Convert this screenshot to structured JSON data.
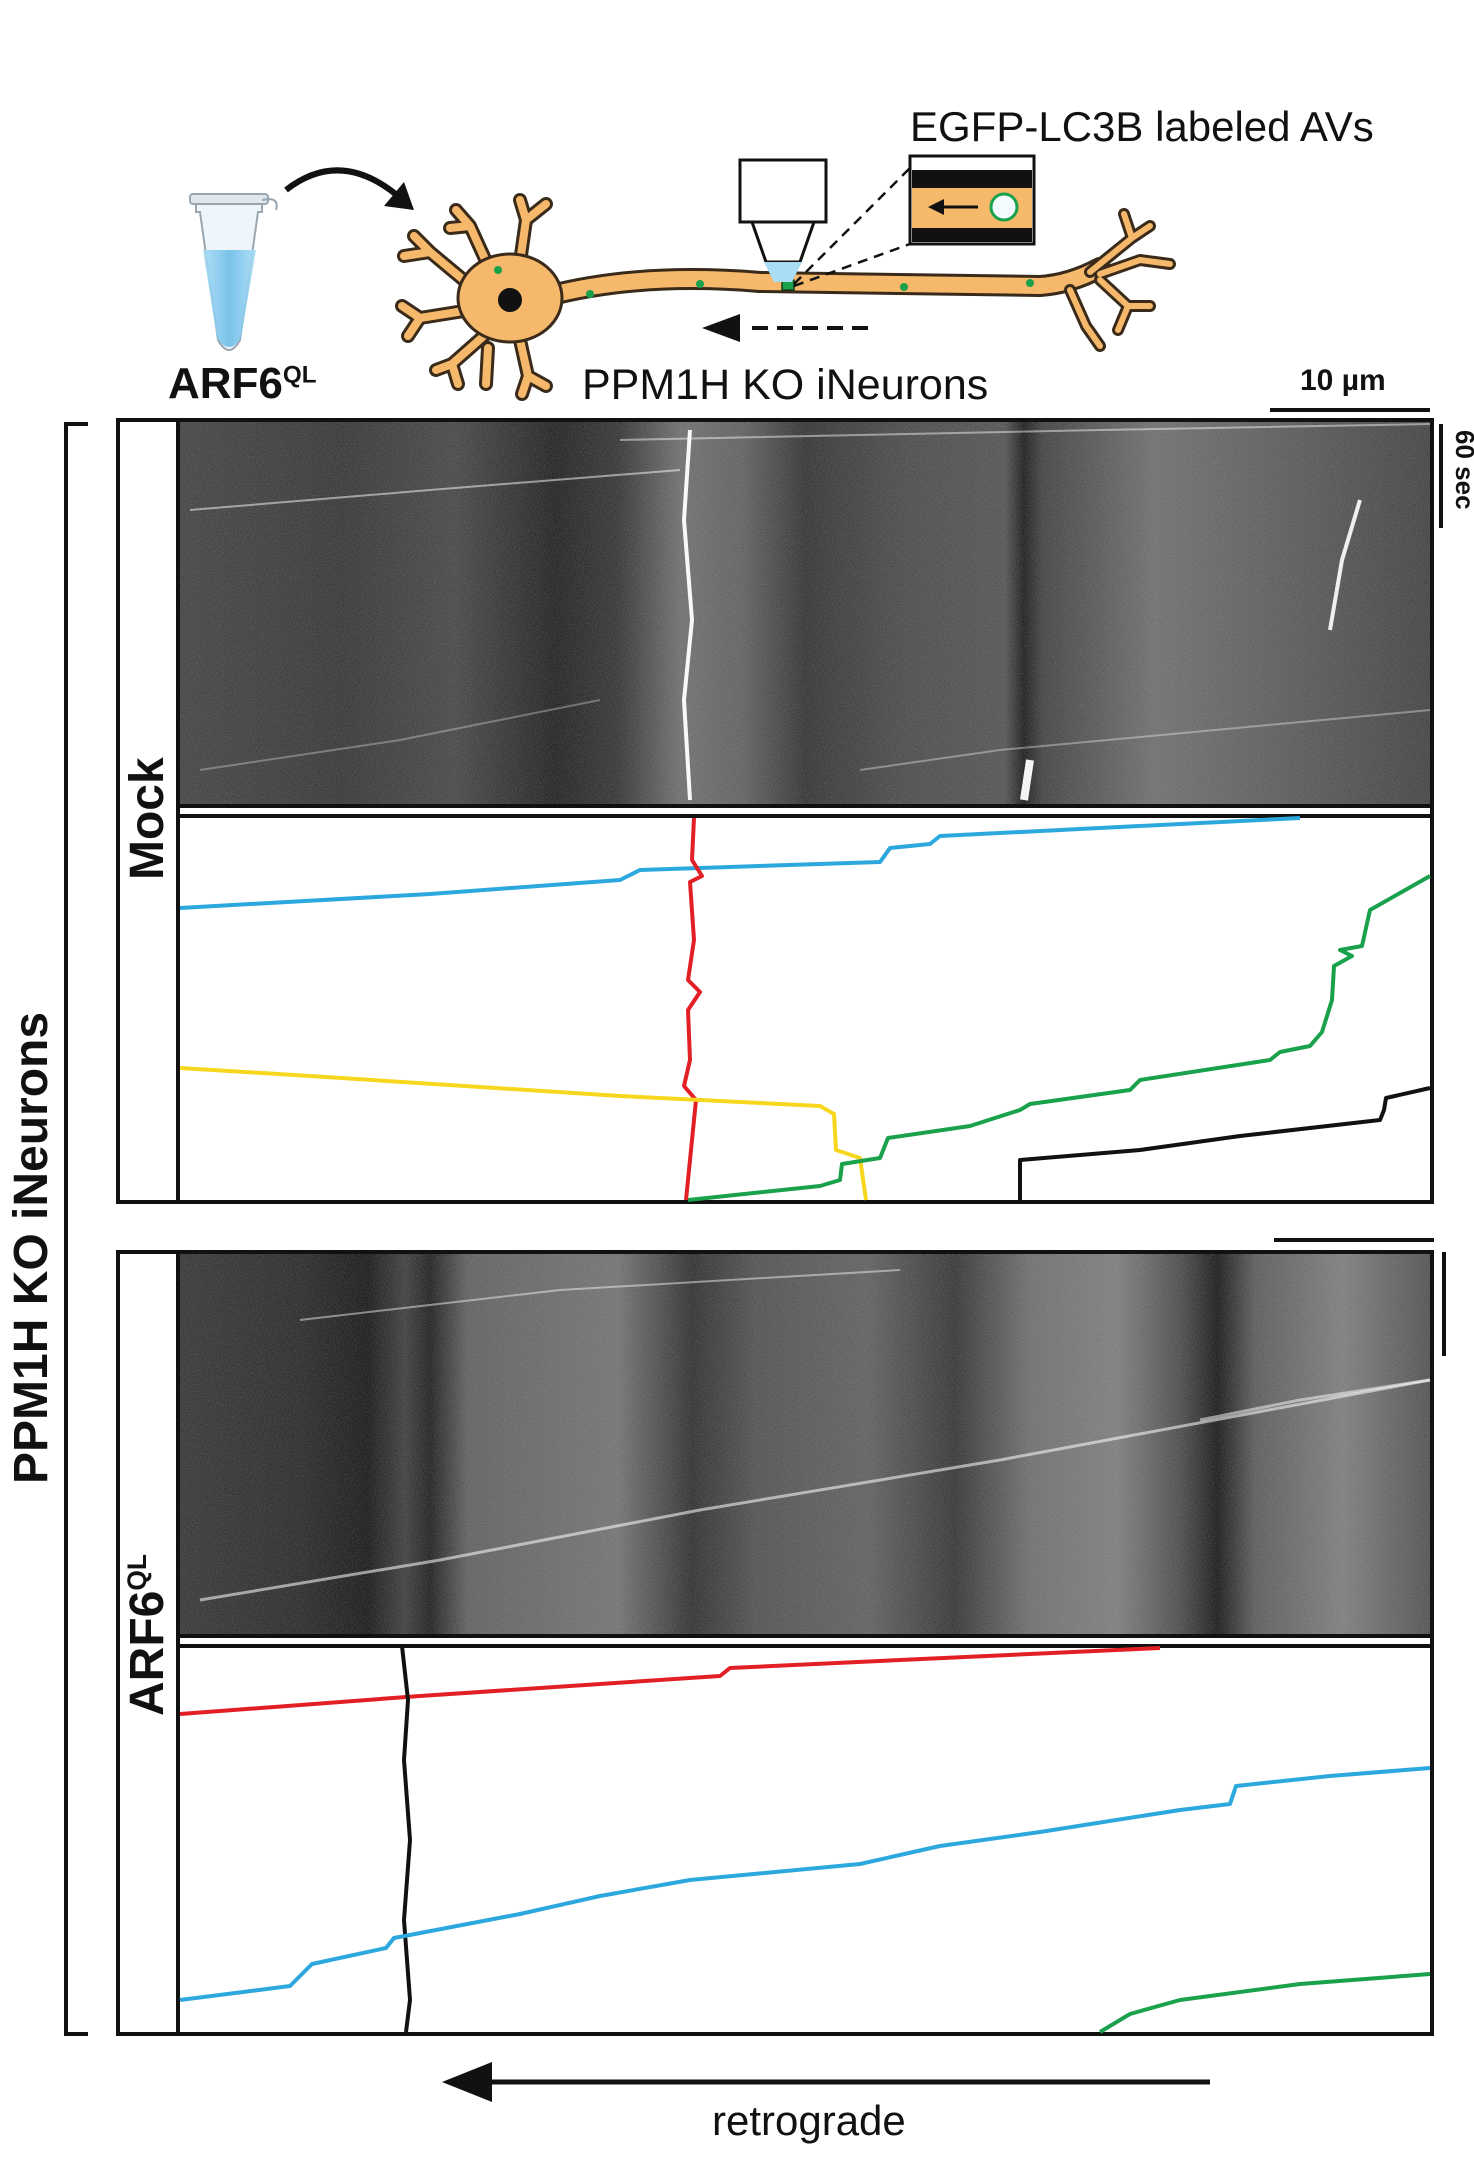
{
  "header": {
    "construct_label": "ARF6",
    "construct_sup": "QL",
    "neuron_label": "PPM1H KO iNeurons",
    "av_label": "EGFP-LC3B labeled AVs"
  },
  "scale_bars": {
    "distance": "10 µm",
    "time": "60 sec"
  },
  "side_label": "PPM1H KO iNeurons",
  "panels": [
    {
      "condition": "Mock",
      "condition_sup": "",
      "tracks": [
        {
          "color": "#2ca8de",
          "name": "blue-track"
        },
        {
          "color": "#e31f26",
          "name": "red-track"
        },
        {
          "color": "#f7d71e",
          "name": "yellow-track"
        },
        {
          "color": "#1aa14b",
          "name": "green-track"
        },
        {
          "color": "#111111",
          "name": "black-track"
        }
      ]
    },
    {
      "condition": "ARF6",
      "condition_sup": "QL",
      "tracks": [
        {
          "color": "#e31f26",
          "name": "red-track"
        },
        {
          "color": "#111111",
          "name": "black-track"
        },
        {
          "color": "#2ca8de",
          "name": "blue-track"
        },
        {
          "color": "#1aa14b",
          "name": "green-track"
        }
      ]
    }
  ],
  "direction_label": "retrograde",
  "colors": {
    "neuron_fill": "#f6b86b",
    "neuron_stroke": "#3a2a1a",
    "av_dot": "#1aa14b",
    "tube_liquid": "#7fc6ec"
  }
}
